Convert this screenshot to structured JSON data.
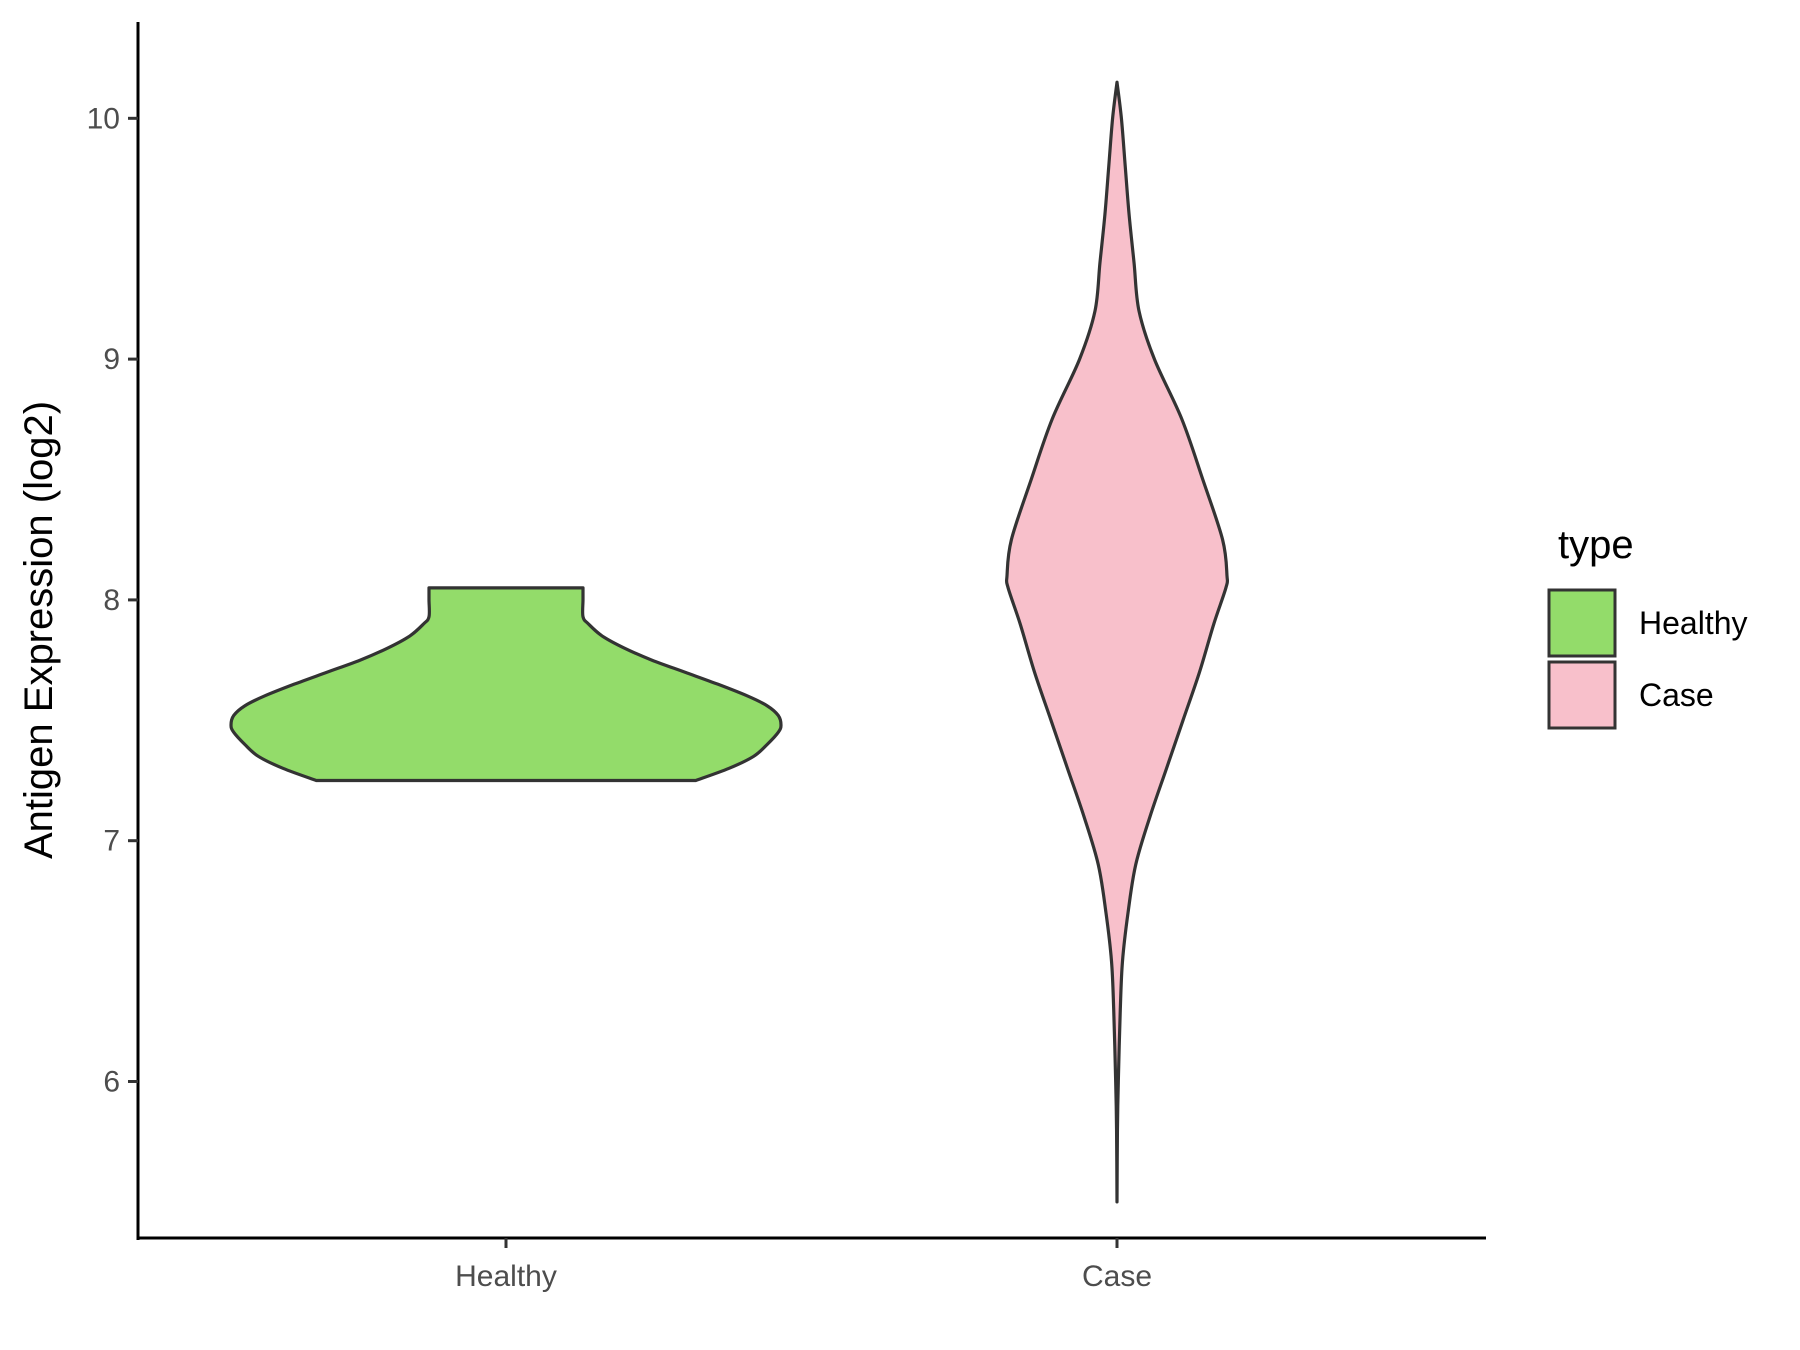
{
  "chart_data": {
    "type": "violin",
    "title": "",
    "xlabel": "",
    "ylabel": "Antigen Expression (log2)",
    "categories": [
      "Healthy",
      "Case"
    ],
    "ylim": [
      5.35,
      10.4
    ],
    "yticks": [
      6,
      7,
      8,
      9,
      10
    ],
    "grid": false,
    "legend": {
      "title": "type",
      "placement": "right",
      "entries": [
        {
          "label": "Healthy",
          "color": "#93dc6a"
        },
        {
          "label": "Case",
          "color": "#f8c0cb"
        }
      ]
    },
    "series": [
      {
        "category": "Healthy",
        "fill": "#93dc6a",
        "stroke": "#333333",
        "min": 7.25,
        "max": 8.05,
        "profile": [
          [
            7.25,
            0.69
          ],
          [
            7.3,
            0.81
          ],
          [
            7.35,
            0.9
          ],
          [
            7.4,
            0.95
          ],
          [
            7.45,
            0.99
          ],
          [
            7.48,
            1.0
          ],
          [
            7.52,
            0.99
          ],
          [
            7.56,
            0.95
          ],
          [
            7.6,
            0.88
          ],
          [
            7.65,
            0.77
          ],
          [
            7.7,
            0.65
          ],
          [
            7.75,
            0.53
          ],
          [
            7.8,
            0.43
          ],
          [
            7.85,
            0.35
          ],
          [
            7.9,
            0.3
          ],
          [
            7.93,
            0.28
          ],
          [
            8.0,
            0.28
          ],
          [
            8.05,
            0.28
          ]
        ]
      },
      {
        "category": "Case",
        "fill": "#f8c0cb",
        "stroke": "#333333",
        "min": 5.5,
        "max": 10.15,
        "profile": [
          [
            5.5,
            0.0
          ],
          [
            5.8,
            0.004
          ],
          [
            6.0,
            0.012
          ],
          [
            6.3,
            0.03
          ],
          [
            6.5,
            0.05
          ],
          [
            6.7,
            0.1
          ],
          [
            6.9,
            0.17
          ],
          [
            7.1,
            0.3
          ],
          [
            7.3,
            0.45
          ],
          [
            7.5,
            0.6
          ],
          [
            7.7,
            0.75
          ],
          [
            7.9,
            0.88
          ],
          [
            8.05,
            0.99
          ],
          [
            8.1,
            1.0
          ],
          [
            8.25,
            0.96
          ],
          [
            8.5,
            0.78
          ],
          [
            8.75,
            0.59
          ],
          [
            9.0,
            0.34
          ],
          [
            9.2,
            0.2
          ],
          [
            9.4,
            0.155
          ],
          [
            9.6,
            0.11
          ],
          [
            9.8,
            0.075
          ],
          [
            10.0,
            0.04
          ],
          [
            10.15,
            0.0
          ]
        ]
      }
    ]
  }
}
